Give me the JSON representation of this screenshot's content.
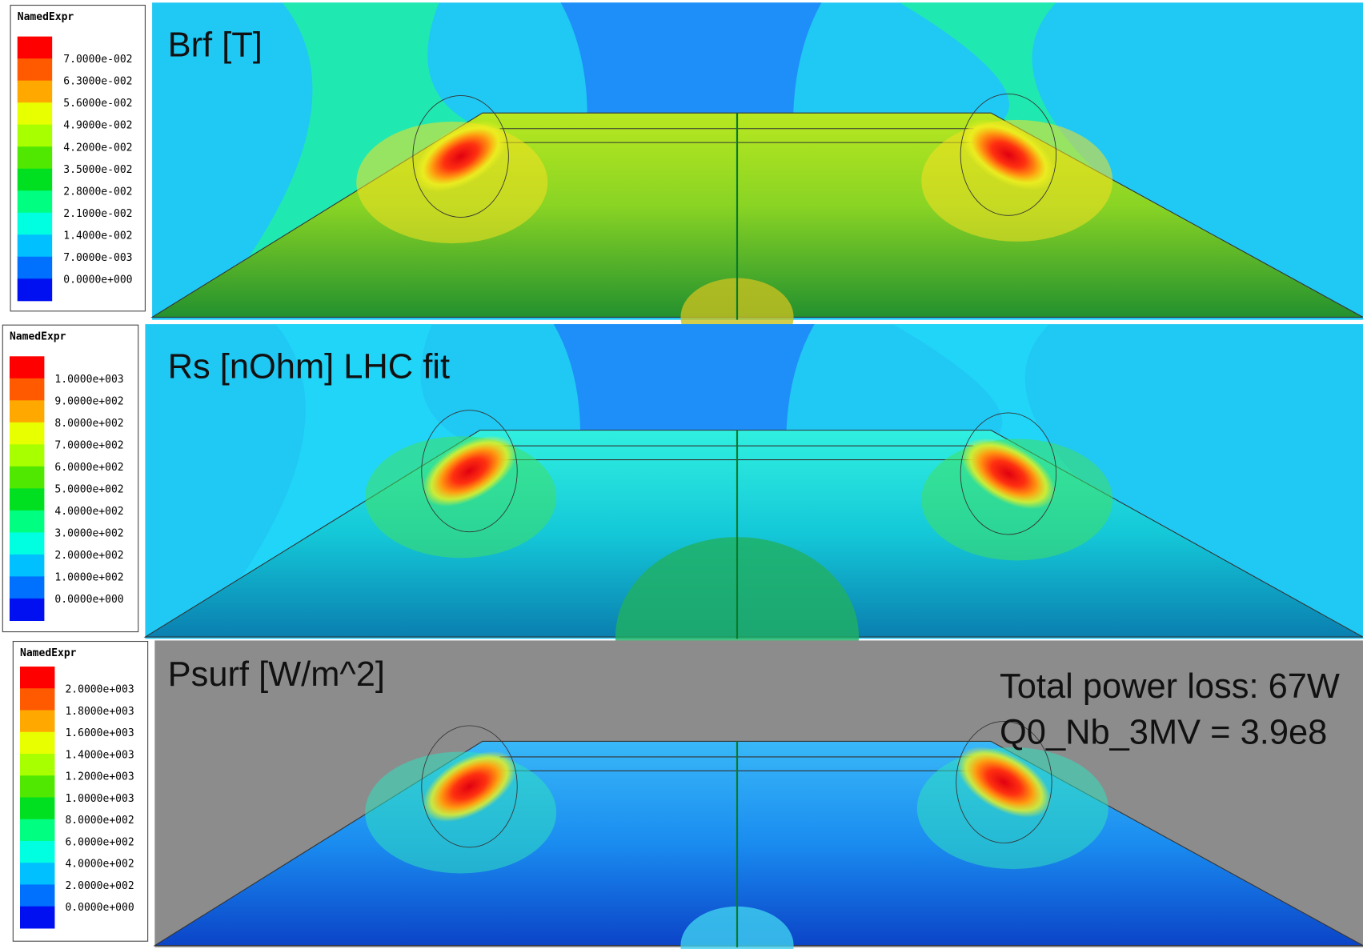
{
  "panels": [
    {
      "legend": {
        "title": "NamedExpr",
        "labels": [
          "7.0000e-002",
          "6.3000e-002",
          "5.6000e-002",
          "4.9000e-002",
          "4.2000e-002",
          "3.5000e-002",
          "2.8000e-002",
          "2.1000e-002",
          "1.4000e-002",
          "7.0000e-003",
          "0.0000e+000"
        ]
      },
      "title": "Brf [T]"
    },
    {
      "legend": {
        "title": "NamedExpr",
        "labels": [
          "1.0000e+003",
          "9.0000e+002",
          "8.0000e+002",
          "7.0000e+002",
          "6.0000e+002",
          "5.0000e+002",
          "4.0000e+002",
          "3.0000e+002",
          "2.0000e+002",
          "1.0000e+002",
          "0.0000e+000"
        ]
      },
      "title": "Rs [nOhm] LHC fit"
    },
    {
      "legend": {
        "title": "NamedExpr",
        "labels": [
          "2.0000e+003",
          "1.8000e+003",
          "1.6000e+003",
          "1.4000e+003",
          "1.2000e+003",
          "1.0000e+003",
          "8.0000e+002",
          "6.0000e+002",
          "4.0000e+002",
          "2.0000e+002",
          "0.0000e+000"
        ]
      },
      "title": "Psurf [W/m^2]"
    }
  ],
  "annotations": [
    "Total power loss: 67W",
    "Q0_Nb_3MV = 3.9e8"
  ]
}
